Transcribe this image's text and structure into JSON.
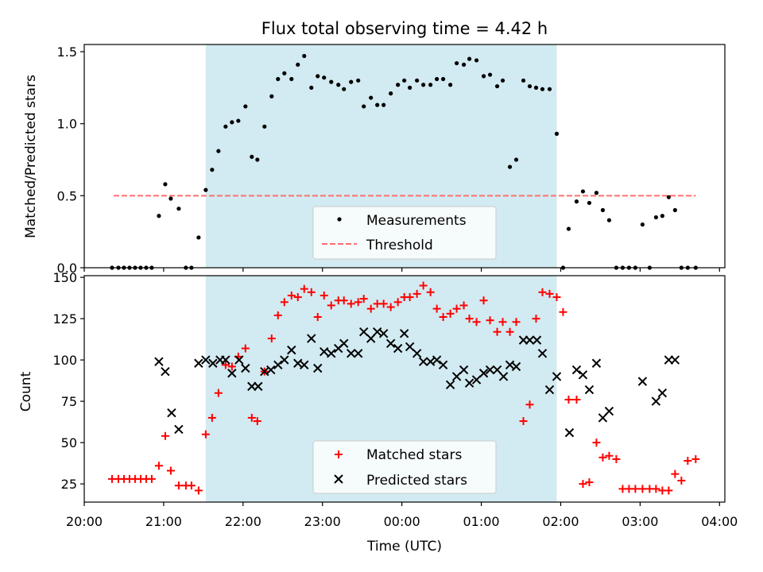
{
  "figure": {
    "title": "Flux total observing time = 4.42 h",
    "xlabel": "Time (UTC)",
    "x_tick_labels": [
      "20:00",
      "21:00",
      "22:00",
      "23:00",
      "00:00",
      "01:00",
      "02:00",
      "03:00",
      "04:00"
    ],
    "night_window_color": "#add8e6"
  },
  "chart_data": [
    {
      "type": "scatter",
      "panel": "top",
      "ylabel": "Matched/Predicted stars",
      "xlim_hours": [
        20.0,
        28.067
      ],
      "ylim": [
        0,
        1.55
      ],
      "y_ticks": [
        0.0,
        0.5,
        1.0,
        1.5
      ],
      "y_tick_labels": [
        "0.0",
        "0.5",
        "1.0",
        "1.5"
      ],
      "shaded_region_hours": [
        21.53,
        25.95
      ],
      "legend": {
        "placement": "lower center",
        "entries": [
          "Measurements",
          "Threshold"
        ]
      },
      "threshold": {
        "name": "Threshold",
        "y": 0.5,
        "x_range_hours": [
          20.37,
          27.7
        ],
        "color": "#ff7070",
        "style": "dashed"
      },
      "series": [
        {
          "name": "Measurements",
          "color": "#000000",
          "marker": "dot",
          "x_hours": [
            20.35,
            20.43,
            20.5,
            20.57,
            20.64,
            20.71,
            20.78,
            20.85,
            20.94,
            21.02,
            21.09,
            21.19,
            21.28,
            21.35,
            21.44,
            21.53,
            21.61,
            21.69,
            21.78,
            21.86,
            21.94,
            22.03,
            22.11,
            22.18,
            22.27,
            22.36,
            22.44,
            22.52,
            22.61,
            22.69,
            22.77,
            22.86,
            22.94,
            23.02,
            23.11,
            23.2,
            23.27,
            23.36,
            23.45,
            23.52,
            23.61,
            23.69,
            23.77,
            23.86,
            23.95,
            24.03,
            24.1,
            24.19,
            24.27,
            24.36,
            24.44,
            24.52,
            24.61,
            24.69,
            24.78,
            24.85,
            24.94,
            25.03,
            25.11,
            25.2,
            25.27,
            25.36,
            25.44,
            25.53,
            25.61,
            25.69,
            25.77,
            25.86,
            25.95,
            26.03,
            26.1,
            26.2,
            26.28,
            26.36,
            26.45,
            26.53,
            26.61,
            26.7,
            26.78,
            26.86,
            26.94,
            27.03,
            27.12,
            27.2,
            27.28,
            27.36,
            27.44,
            27.52,
            27.6,
            27.7
          ],
          "y": [
            0,
            0,
            0,
            0,
            0,
            0,
            0,
            0,
            0.36,
            0.58,
            0.48,
            0.41,
            0,
            0,
            0.21,
            0.54,
            0.68,
            0.81,
            0.98,
            1.01,
            1.02,
            1.12,
            0.77,
            0.75,
            0.98,
            1.19,
            1.31,
            1.35,
            1.31,
            1.41,
            1.47,
            1.25,
            1.33,
            1.32,
            1.29,
            1.27,
            1.24,
            1.29,
            1.3,
            1.12,
            1.18,
            1.13,
            1.13,
            1.21,
            1.27,
            1.3,
            1.25,
            1.3,
            1.27,
            1.27,
            1.31,
            1.31,
            1.27,
            1.42,
            1.41,
            1.45,
            1.44,
            1.33,
            1.34,
            1.26,
            1.3,
            0.7,
            0.75,
            1.3,
            1.26,
            1.25,
            1.24,
            1.24,
            0.93,
            0,
            0.27,
            0.46,
            0.53,
            0.45,
            0.52,
            0.4,
            0.33,
            0,
            0,
            0,
            0,
            0.3,
            0,
            0.35,
            0.36,
            0.49,
            0.4,
            0,
            0,
            0
          ]
        }
      ]
    },
    {
      "type": "scatter",
      "panel": "bottom",
      "ylabel": "Count",
      "xlim_hours": [
        20.0,
        28.067
      ],
      "ylim": [
        14,
        151
      ],
      "y_ticks": [
        25,
        50,
        75,
        100,
        125,
        150
      ],
      "y_tick_labels": [
        "25",
        "50",
        "75",
        "100",
        "125",
        "150"
      ],
      "shaded_region_hours": [
        21.53,
        25.95
      ],
      "legend": {
        "placement": "lower center",
        "entries": [
          "Matched stars",
          "Predicted stars"
        ]
      },
      "series": [
        {
          "name": "Matched stars",
          "color": "#ff0000",
          "marker": "plus",
          "x_hours": [
            20.35,
            20.43,
            20.5,
            20.57,
            20.64,
            20.71,
            20.78,
            20.85,
            20.94,
            21.02,
            21.09,
            21.19,
            21.28,
            21.35,
            21.44,
            21.53,
            21.61,
            21.69,
            21.78,
            21.86,
            21.94,
            22.03,
            22.11,
            22.18,
            22.27,
            22.36,
            22.44,
            22.52,
            22.61,
            22.69,
            22.77,
            22.86,
            22.94,
            23.02,
            23.11,
            23.2,
            23.27,
            23.36,
            23.45,
            23.52,
            23.61,
            23.69,
            23.77,
            23.86,
            23.95,
            24.03,
            24.1,
            24.19,
            24.27,
            24.36,
            24.44,
            24.52,
            24.61,
            24.69,
            24.78,
            24.85,
            24.94,
            25.03,
            25.11,
            25.2,
            25.27,
            25.36,
            25.44,
            25.53,
            25.61,
            25.69,
            25.77,
            25.86,
            25.95,
            26.03,
            26.1,
            26.2,
            26.28,
            26.36,
            26.45,
            26.53,
            26.61,
            26.7,
            26.78,
            26.86,
            26.94,
            27.03,
            27.12,
            27.2,
            27.28,
            27.36,
            27.44,
            27.52,
            27.6,
            27.7
          ],
          "y": [
            28,
            28,
            28,
            28,
            28,
            28,
            28,
            28,
            36,
            54,
            33,
            24,
            24,
            24,
            21,
            55,
            65,
            80,
            97,
            96,
            102,
            107,
            65,
            63,
            93,
            113,
            127,
            135,
            139,
            138,
            143,
            141,
            126,
            139,
            133,
            136,
            136,
            134,
            135,
            137,
            131,
            134,
            134,
            132,
            135,
            138,
            138,
            140,
            145,
            141,
            131,
            126,
            128,
            131,
            133,
            125,
            123,
            136,
            124,
            117,
            123,
            117,
            123,
            63,
            73,
            125,
            141,
            140,
            138,
            129,
            76,
            76,
            25,
            26,
            50,
            41,
            42,
            40,
            22,
            22,
            22,
            22,
            22,
            22,
            21,
            21,
            31,
            27,
            39,
            40
          ]
        },
        {
          "name": "Predicted stars",
          "color": "#000000",
          "marker": "x",
          "x_hours": [
            20.94,
            21.02,
            21.1,
            21.19,
            21.44,
            21.53,
            21.62,
            21.71,
            21.78,
            21.86,
            21.95,
            22.03,
            22.11,
            22.19,
            22.27,
            22.35,
            22.44,
            22.52,
            22.61,
            22.69,
            22.77,
            22.86,
            22.94,
            23.02,
            23.11,
            23.2,
            23.27,
            23.36,
            23.45,
            23.52,
            23.61,
            23.69,
            23.77,
            23.86,
            23.95,
            24.03,
            24.1,
            24.19,
            24.27,
            24.36,
            24.44,
            24.52,
            24.61,
            24.69,
            24.78,
            24.85,
            24.94,
            25.03,
            25.11,
            25.2,
            25.28,
            25.36,
            25.44,
            25.53,
            25.61,
            25.7,
            25.77,
            25.86,
            25.95,
            26.11,
            26.2,
            26.28,
            26.36,
            26.45,
            26.53,
            26.61,
            27.03,
            27.2,
            27.28,
            27.36,
            27.44
          ],
          "y": [
            99,
            93,
            68,
            58,
            98,
            100,
            98,
            100,
            100,
            92,
            100,
            95,
            84,
            84,
            93,
            94,
            97,
            100,
            106,
            98,
            97,
            113,
            95,
            105,
            104,
            107,
            110,
            104,
            104,
            117,
            113,
            117,
            116,
            110,
            107,
            116,
            108,
            104,
            99,
            99,
            100,
            97,
            85,
            90,
            94,
            86,
            88,
            92,
            94,
            94,
            90,
            97,
            96,
            112,
            112,
            112,
            104,
            82,
            90,
            56,
            94,
            91,
            82,
            98,
            65,
            69,
            87,
            75,
            80,
            100,
            100
          ]
        }
      ]
    }
  ]
}
